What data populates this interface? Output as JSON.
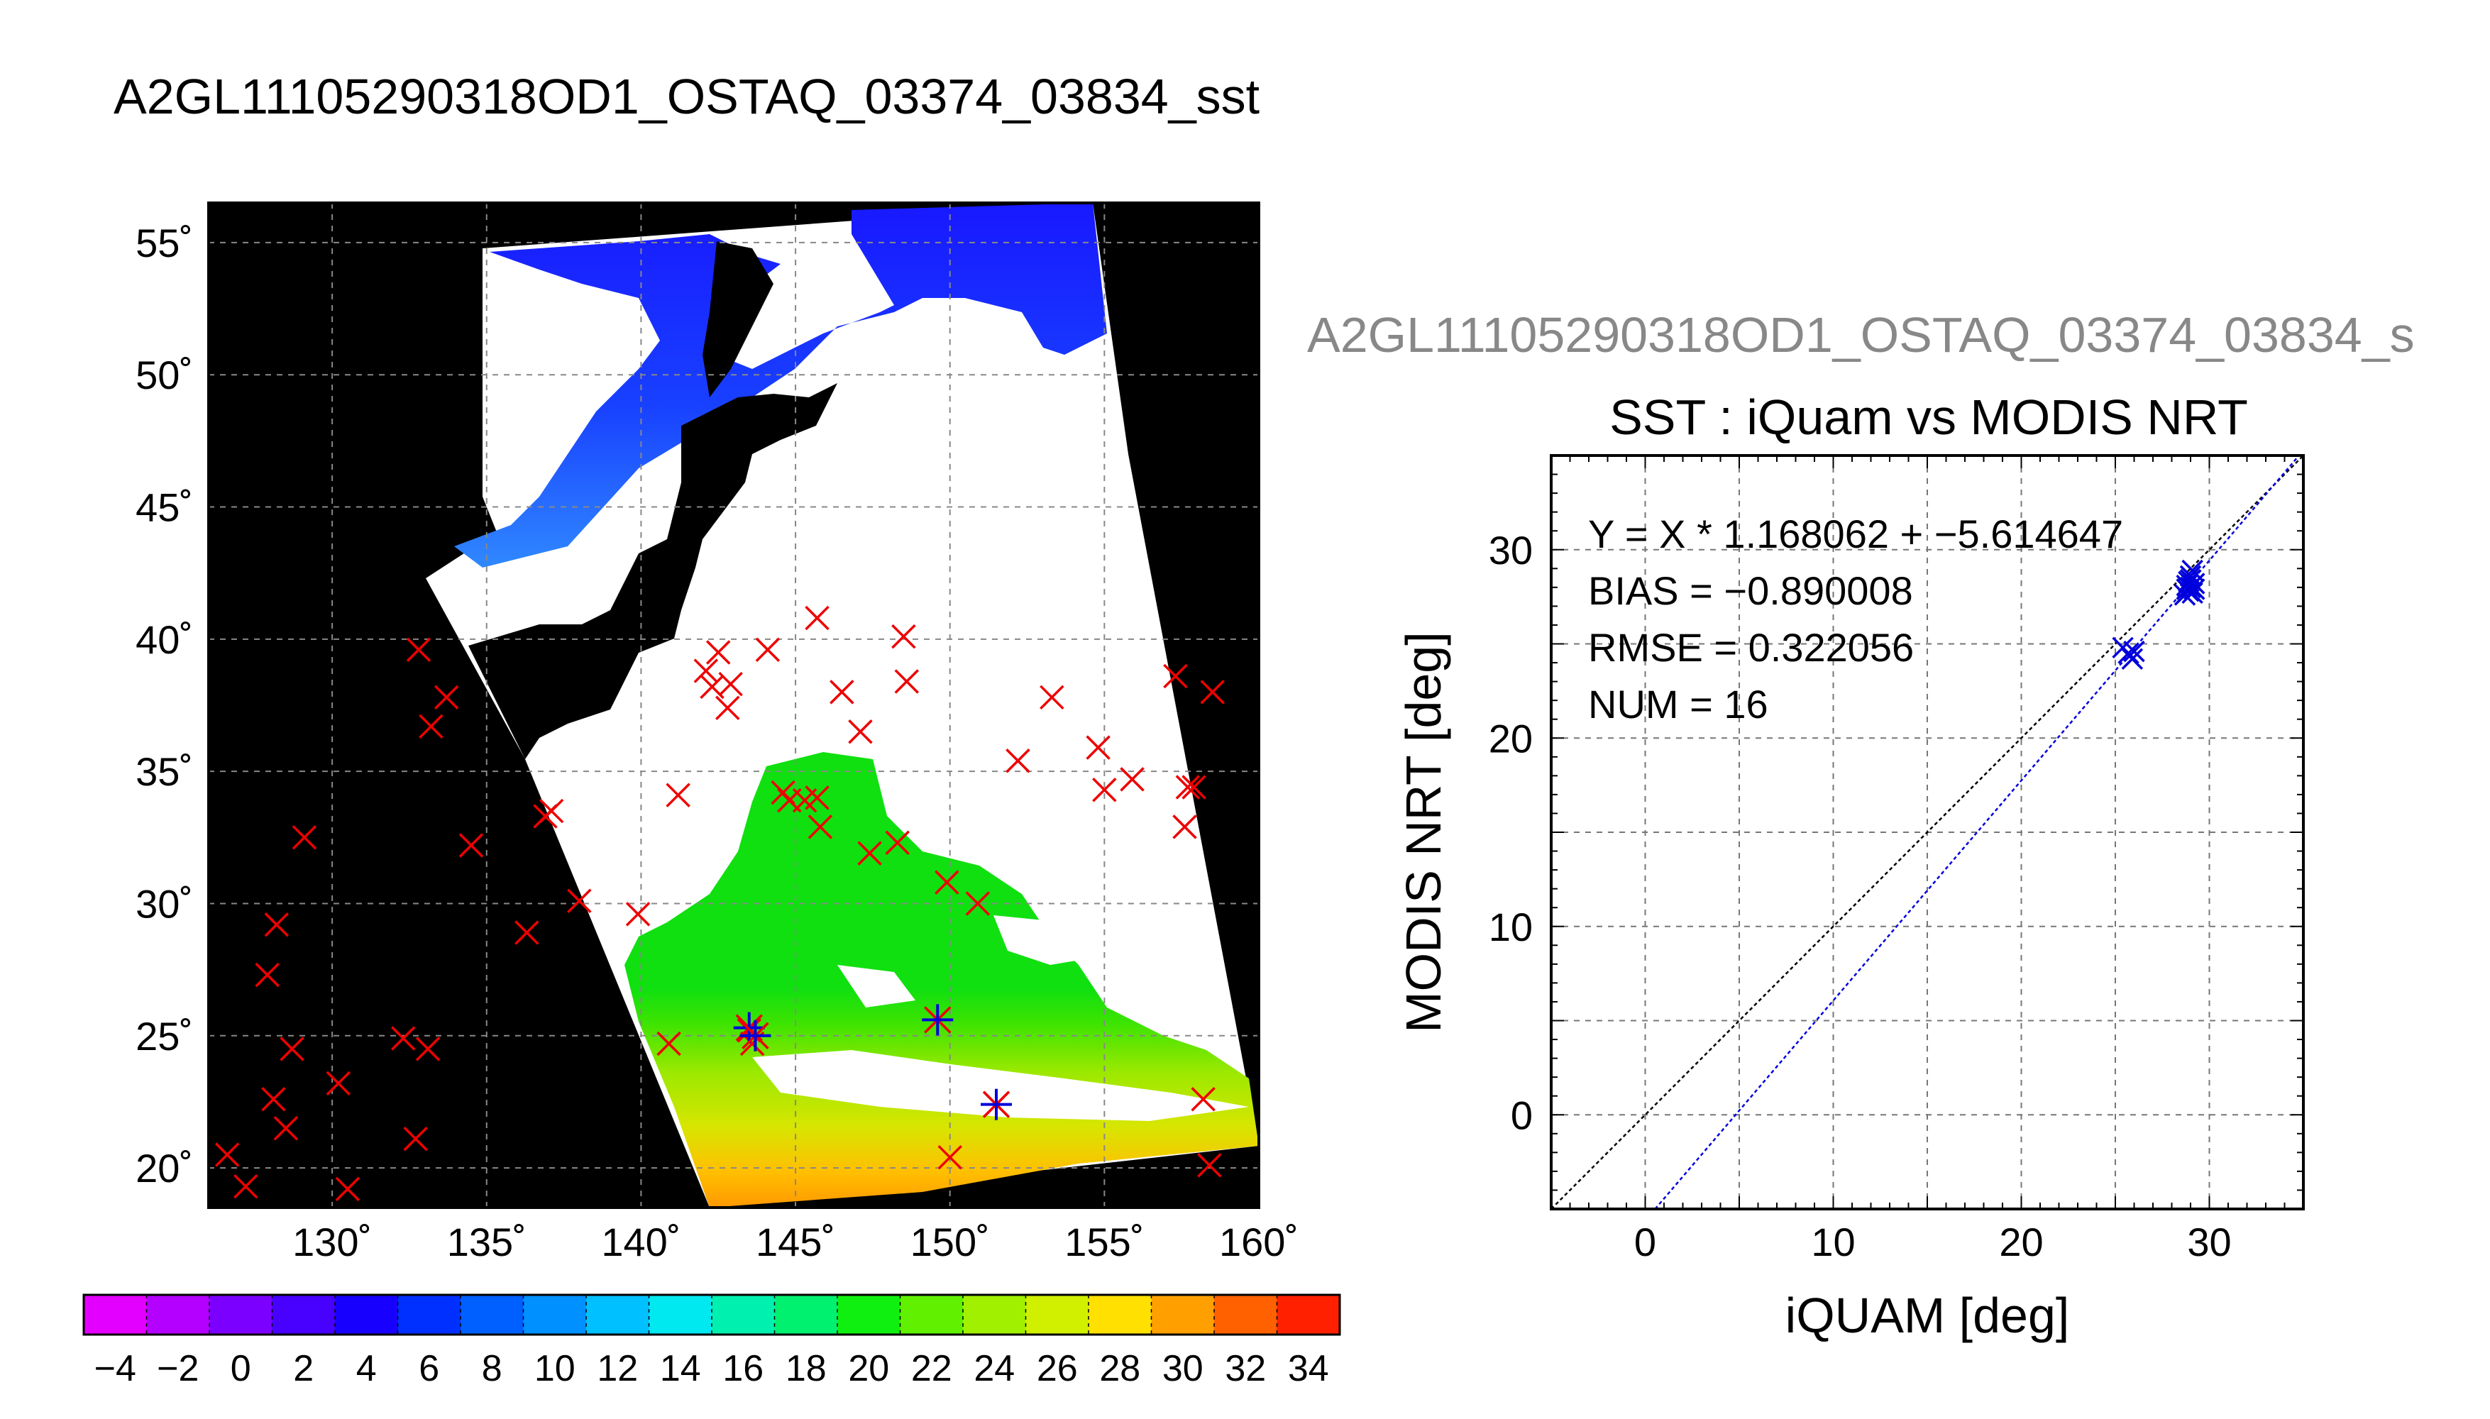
{
  "figure_title": "A2GL11105290318OD1_OSTAQ_03374_03834_sst",
  "map": {
    "lat_ticks": [
      20,
      25,
      30,
      35,
      40,
      45,
      50,
      55
    ],
    "lon_ticks": [
      130,
      135,
      140,
      145,
      150,
      155,
      160
    ],
    "xlim": [
      126,
      160
    ],
    "ylim": [
      18.5,
      56.5
    ],
    "colors": {
      "land": "#000000",
      "cloud": "#ffffff",
      "buoy": "#ee0000",
      "matchup": "#0000dd"
    },
    "iquam_positions": [
      [
        126.6,
        20.5
      ],
      [
        127.2,
        19.3
      ],
      [
        127.9,
        27.3
      ],
      [
        128.2,
        29.2
      ],
      [
        128.1,
        22.6
      ],
      [
        128.5,
        21.5
      ],
      [
        128.7,
        24.5
      ],
      [
        129.1,
        32.5
      ],
      [
        130.2,
        23.2
      ],
      [
        130.5,
        19.2
      ],
      [
        132.3,
        24.9
      ],
      [
        132.7,
        21.1
      ],
      [
        133.1,
        24.5
      ],
      [
        132.8,
        39.6
      ],
      [
        133.2,
        36.7
      ],
      [
        133.7,
        37.8
      ],
      [
        134.5,
        32.2
      ],
      [
        136.3,
        28.9
      ],
      [
        136.9,
        33.3
      ],
      [
        137.1,
        33.5
      ],
      [
        138.0,
        30.1
      ],
      [
        139.9,
        29.6
      ],
      [
        140.9,
        24.7
      ],
      [
        141.2,
        34.1
      ],
      [
        142.1,
        38.8
      ],
      [
        142.3,
        38.2
      ],
      [
        142.5,
        39.5
      ],
      [
        142.9,
        38.3
      ],
      [
        142.8,
        37.4
      ],
      [
        143.5,
        25.2
      ],
      [
        143.6,
        24.7
      ],
      [
        144.1,
        39.6
      ],
      [
        144.6,
        34.2
      ],
      [
        144.8,
        33.9
      ],
      [
        145.3,
        33.9
      ],
      [
        145.7,
        34.0
      ],
      [
        145.7,
        40.8
      ],
      [
        145.8,
        32.9
      ],
      [
        146.5,
        38.0
      ],
      [
        147.1,
        36.5
      ],
      [
        147.4,
        31.9
      ],
      [
        148.3,
        32.3
      ],
      [
        148.5,
        40.1
      ],
      [
        148.6,
        38.4
      ],
      [
        149.6,
        25.6
      ],
      [
        149.9,
        30.8
      ],
      [
        150.0,
        20.4
      ],
      [
        150.9,
        30.0
      ],
      [
        151.5,
        22.4
      ],
      [
        152.2,
        35.4
      ],
      [
        153.3,
        37.8
      ],
      [
        154.8,
        35.9
      ],
      [
        155.0,
        34.3
      ],
      [
        155.9,
        34.7
      ],
      [
        157.3,
        38.6
      ],
      [
        157.6,
        32.9
      ],
      [
        157.7,
        34.4
      ],
      [
        157.9,
        34.4
      ],
      [
        158.2,
        22.6
      ],
      [
        158.5,
        38.0
      ],
      [
        158.4,
        20.1
      ]
    ],
    "matchups": [
      [
        143.5,
        25.3
      ],
      [
        143.7,
        25.0
      ],
      [
        149.6,
        25.6
      ],
      [
        151.5,
        22.4
      ]
    ]
  },
  "colorbar": {
    "tick_labels": [
      "−4",
      "−2",
      "0",
      "2",
      "4",
      "6",
      "8",
      "10",
      "12",
      "14",
      "16",
      "18",
      "20",
      "22",
      "24",
      "26",
      "28",
      "30",
      "32",
      "34"
    ],
    "range": [
      -5,
      35
    ],
    "colors": [
      "#e400ff",
      "#b400ff",
      "#7c00ff",
      "#4800ff",
      "#1800ff",
      "#0030ff",
      "#0060ff",
      "#0090ff",
      "#00c0ff",
      "#00e8f0",
      "#00f0b0",
      "#00f070",
      "#10f010",
      "#60f000",
      "#a0f000",
      "#d0f000",
      "#ffe000",
      "#ffa000",
      "#ff6000",
      "#ff2000"
    ]
  },
  "chart_data": {
    "type": "scatter",
    "header": "A2GL11105290318OD1_OSTAQ_03374_03834_s",
    "title": "SST : iQuam vs MODIS NRT",
    "xlabel": "iQUAM [deg]",
    "ylabel": "MODIS NRT [deg]",
    "xlim": [
      -5,
      35
    ],
    "ylim": [
      -5,
      35
    ],
    "x_ticks": [
      0,
      10,
      20,
      30
    ],
    "y_ticks": [
      0,
      10,
      20,
      30
    ],
    "grid": true,
    "stats": [
      "Y = X * 1.168062 + −5.614647",
      "BIAS = −0.890008",
      "RMSE = 0.322056",
      "NUM = 16"
    ],
    "fit": {
      "slope": 1.168062,
      "intercept": -5.614647
    },
    "points": [
      [
        25.4,
        24.8
      ],
      [
        25.7,
        24.5
      ],
      [
        25.9,
        24.2
      ],
      [
        26.0,
        24.6
      ],
      [
        28.7,
        27.6
      ],
      [
        28.8,
        28.1
      ],
      [
        28.9,
        28.3
      ],
      [
        28.9,
        27.8
      ],
      [
        29.0,
        28.6
      ],
      [
        29.0,
        28.0
      ],
      [
        29.1,
        27.7
      ],
      [
        29.1,
        28.9
      ],
      [
        29.2,
        28.2
      ],
      [
        29.2,
        27.9
      ],
      [
        28.8,
        27.9
      ],
      [
        29.0,
        28.4
      ]
    ],
    "colors": {
      "points": "#0000dd",
      "fit": "#0000dd",
      "identity": "#000000"
    }
  }
}
